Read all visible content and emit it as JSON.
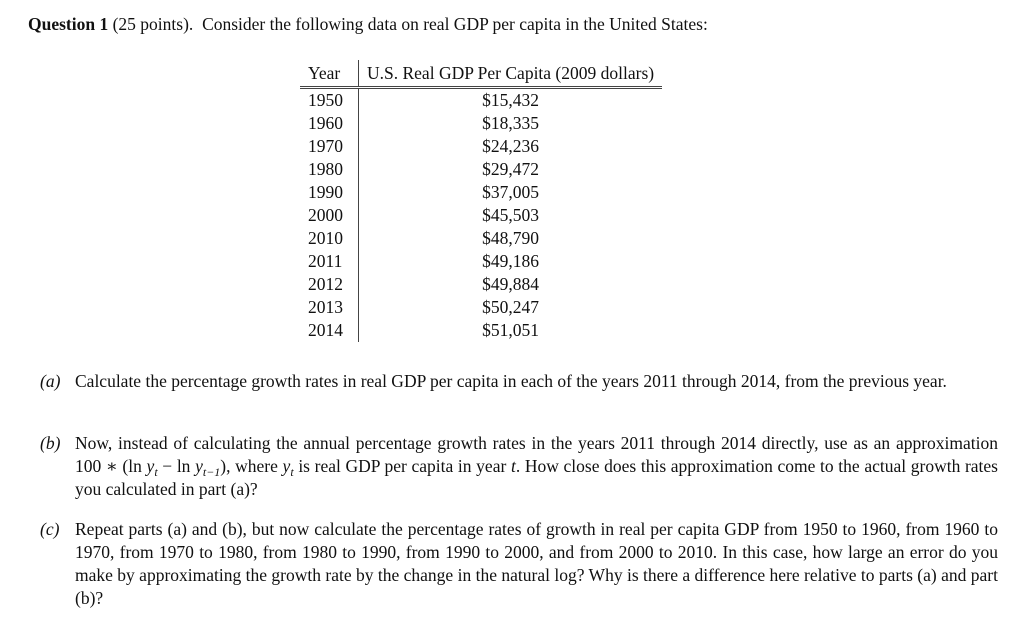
{
  "header": {
    "label": "Question 1",
    "points": "(25 points).",
    "text": "Consider the following data on real GDP per capita in the United States:"
  },
  "table": {
    "columns": [
      "Year",
      "U.S. Real GDP Per Capita (2009 dollars)"
    ],
    "rows": [
      [
        "1950",
        "$15,432"
      ],
      [
        "1960",
        "$18,335"
      ],
      [
        "1970",
        "$24,236"
      ],
      [
        "1980",
        "$29,472"
      ],
      [
        "1990",
        "$37,005"
      ],
      [
        "2000",
        "$45,503"
      ],
      [
        "2010",
        "$48,790"
      ],
      [
        "2011",
        "$49,186"
      ],
      [
        "2012",
        "$49,884"
      ],
      [
        "2013",
        "$50,247"
      ],
      [
        "2014",
        "$51,051"
      ]
    ]
  },
  "parts": [
    {
      "label": "(a)",
      "runs": [
        {
          "text": "Calculate the percentage growth rates in real GDP per capita in each of the years 2011 through 2014, from the previous year."
        }
      ]
    },
    {
      "label": "(b)",
      "runs": [
        {
          "text": "Now, instead of calculating the annual percentage growth rates in the years 2011 through 2014 directly, use as an approximation 100 ∗ (ln "
        },
        {
          "text": "y",
          "style": "italic"
        },
        {
          "text": "t",
          "style": "sub"
        },
        {
          "text": " − ln "
        },
        {
          "text": "y",
          "style": "italic"
        },
        {
          "text": "t−1",
          "style": "sub"
        },
        {
          "text": "), where "
        },
        {
          "text": "y",
          "style": "italic"
        },
        {
          "text": "t",
          "style": "sub"
        },
        {
          "text": " is real GDP per capita in year "
        },
        {
          "text": "t",
          "style": "italic"
        },
        {
          "text": ". How close does this approximation come to the actual growth rates you calculated in part (a)?"
        }
      ]
    },
    {
      "label": "(c)",
      "runs": [
        {
          "text": "Repeat parts (a) and (b), but now calculate the percentage rates of growth in real per capita GDP from 1950 to 1960, from 1960 to 1970, from 1970 to 1980, from 1980 to 1990, from 1990 to 2000, and from 2000 to 2010. In this case, how large an error do you make by approximating the growth rate by the change in the natural log? Why is there a difference here relative to parts (a) and part (b)?"
        }
      ]
    }
  ]
}
